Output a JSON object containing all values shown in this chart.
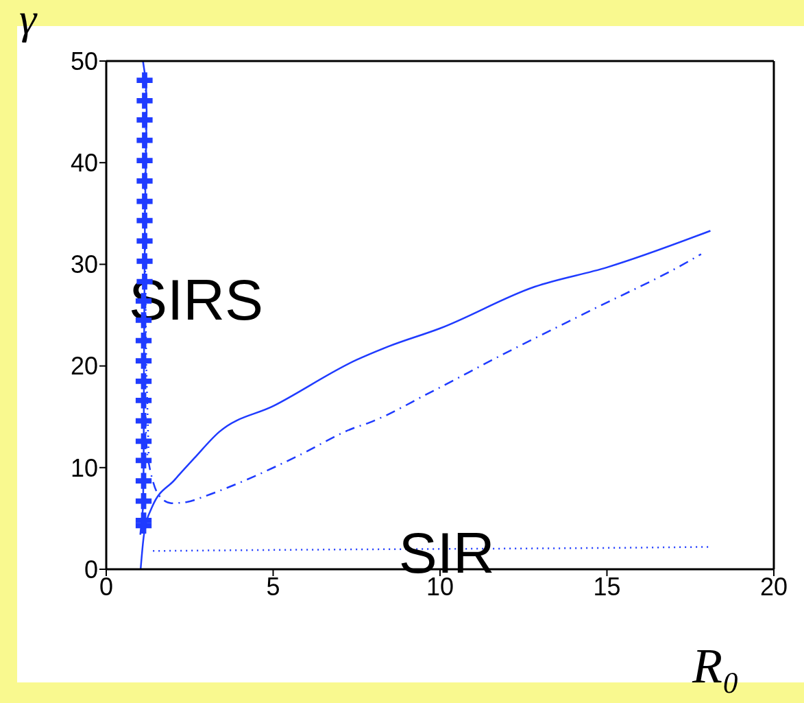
{
  "chart_data": {
    "type": "line",
    "xlabel": "R₀",
    "ylabel": "γ",
    "xlim": [
      0,
      20
    ],
    "xticks": [
      0,
      5,
      10,
      15,
      20
    ],
    "ylim": [
      0,
      50
    ],
    "yticks": [
      0,
      10,
      20,
      30,
      40,
      50
    ],
    "annotations": [
      "SIRS",
      {
        "text": "SIR",
        "x": 10.2,
        "y": 1.7
      }
    ],
    "series": [
      {
        "type": "line",
        "line_style": "solid",
        "marker": "none",
        "color": "#1f3bff",
        "x": [
          1.03,
          1.13,
          1.37,
          2.05,
          2.63,
          3.38,
          5.03,
          7.5,
          8.44,
          10,
          12.84,
          15,
          18.1
        ],
        "values": [
          0,
          3.4,
          6.1,
          8.8,
          10.9,
          13.5,
          16.1,
          20.6,
          21.9,
          23.7,
          27.8,
          29.7,
          33.3
        ]
      },
      {
        "type": "line",
        "line_style": "solid",
        "marker": "none",
        "color": "#1f3bff",
        "x": [
          1.02,
          1.1,
          1.12,
          1.13,
          1.16,
          1.21,
          1.19,
          1.1
        ],
        "values": [
          3.4,
          6,
          10,
          20,
          35,
          45,
          48,
          50
        ]
      },
      {
        "type": "scatter",
        "marker": "cross",
        "color": "#1f3bff",
        "x": [
          1.12,
          1.12,
          1.12,
          1.12,
          1.12,
          1.12,
          1.12,
          1.12,
          1.12,
          1.12,
          1.12,
          1.12,
          1.12,
          1.15,
          1.15,
          1.15,
          1.15,
          1.15,
          1.15,
          1.15,
          1.15,
          1.15,
          1.15,
          1.15
        ],
        "values": [
          4.3,
          4.8,
          6.7,
          8.7,
          10.7,
          12.6,
          14.6,
          16.6,
          18.5,
          20.5,
          22.5,
          24.5,
          26.4,
          28.3,
          30.3,
          32.3,
          34.3,
          36.2,
          38.2,
          40.2,
          42.2,
          44.2,
          46.1,
          48.1
        ]
      },
      {
        "type": "line",
        "line_style": "dashed",
        "marker": "none",
        "color": "#1f3bff",
        "x": [
          1.18,
          1.2,
          1.3,
          1.37,
          1.57,
          1.95,
          2.39,
          2.97,
          3.38,
          4.34,
          5.71,
          7.42,
          7.86,
          9.71,
          11.86,
          14.6,
          17.23,
          17.82
        ],
        "values": [
          15,
          12.5,
          10,
          9,
          7.3,
          6.5,
          6.6,
          7.2,
          7.7,
          9,
          11.1,
          13.9,
          14.4,
          17.4,
          21.1,
          25.6,
          29.9,
          31
        ]
      },
      {
        "type": "line",
        "line_style": "dotted",
        "marker": "none",
        "color": "#1f3bff",
        "x": [
          1.4,
          5,
          10,
          15,
          18.05
        ],
        "values": [
          1.8,
          1.9,
          2,
          2.1,
          2.2
        ]
      },
      {
        "type": "line",
        "line_style": "dotted",
        "marker": "none",
        "color": "#1f3bff",
        "x": [
          1.27,
          1.2,
          1.15,
          1.2,
          1.15
        ],
        "values": [
          11.4,
          20,
          35,
          46,
          49
        ]
      }
    ]
  }
}
